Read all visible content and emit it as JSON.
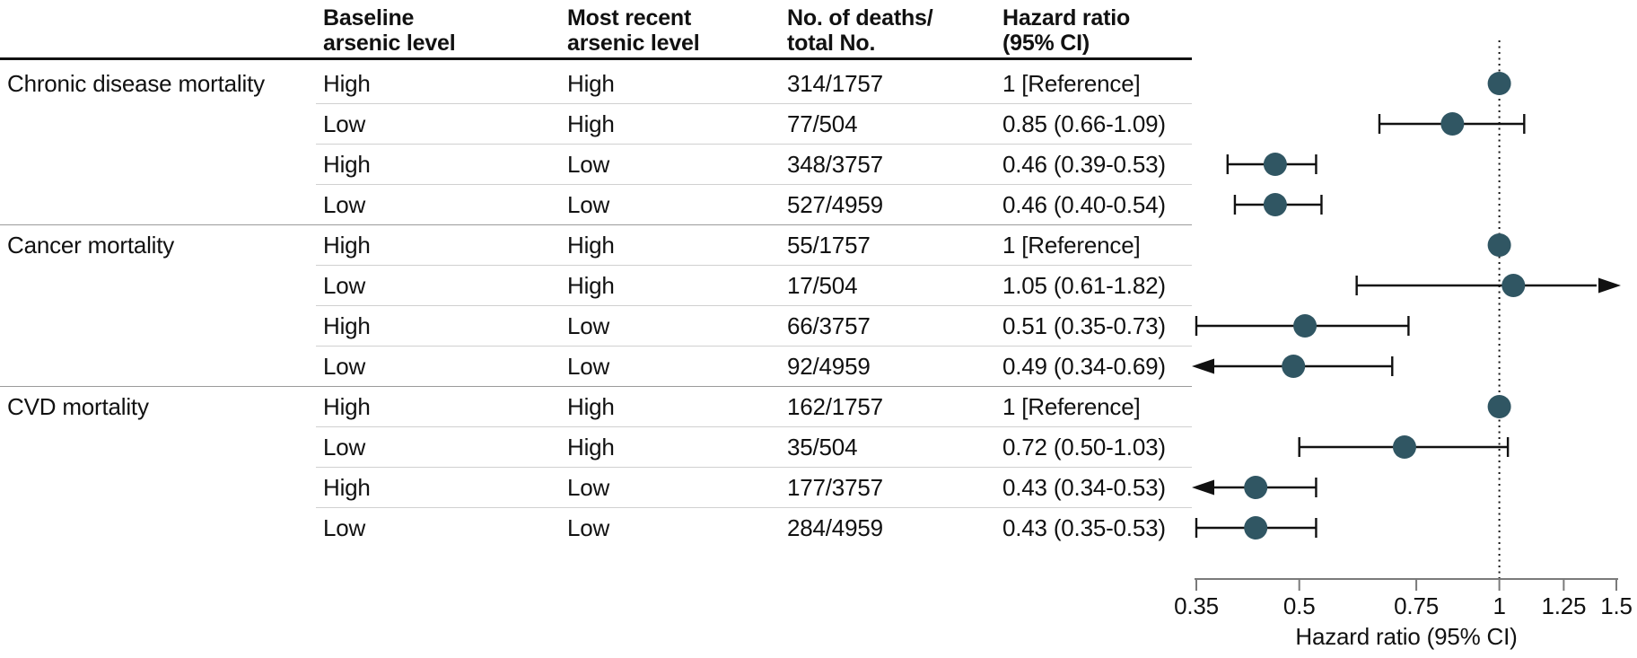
{
  "table": {
    "headers": {
      "baseline": "Baseline\narsenic level",
      "recent": "Most recent\narsenic level",
      "deaths": "No. of deaths/\ntotal No.",
      "hazard": "Hazard ratio\n(95% CI)"
    }
  },
  "chart_data": {
    "type": "scatter",
    "subtype": "forest-plot",
    "xlabel": "Hazard ratio (95% CI)",
    "xscale": "log",
    "xlim": [
      0.35,
      1.5
    ],
    "xticks": [
      0.35,
      0.5,
      0.75,
      1,
      1.25,
      1.5
    ],
    "xtick_labels": [
      "0.35",
      "0.5",
      "0.75",
      "1",
      "1.25",
      "1.5"
    ],
    "reference_line_x": 1,
    "groups": [
      {
        "label": "Chronic disease mortality",
        "rows": [
          {
            "baseline": "High",
            "recent": "High",
            "deaths": "314/1757",
            "hr_text": "1 [Reference]",
            "hr": 1,
            "reference": true
          },
          {
            "baseline": "Low",
            "recent": "High",
            "deaths": "77/504",
            "hr_text": "0.85 (0.66-1.09)",
            "hr": 0.85,
            "lo": 0.66,
            "hi": 1.09
          },
          {
            "baseline": "High",
            "recent": "Low",
            "deaths": "348/3757",
            "hr_text": "0.46 (0.39-0.53)",
            "hr": 0.46,
            "lo": 0.39,
            "hi": 0.53
          },
          {
            "baseline": "Low",
            "recent": "Low",
            "deaths": "527/4959",
            "hr_text": "0.46 (0.40-0.54)",
            "hr": 0.46,
            "lo": 0.4,
            "hi": 0.54
          }
        ]
      },
      {
        "label": "Cancer mortality",
        "rows": [
          {
            "baseline": "High",
            "recent": "High",
            "deaths": "55/1757",
            "hr_text": "1 [Reference]",
            "hr": 1,
            "reference": true
          },
          {
            "baseline": "Low",
            "recent": "High",
            "deaths": "17/504",
            "hr_text": "1.05 (0.61-1.82)",
            "hr": 1.05,
            "lo": 0.61,
            "hi": 1.82,
            "clip_hi": true
          },
          {
            "baseline": "High",
            "recent": "Low",
            "deaths": "66/3757",
            "hr_text": "0.51 (0.35-0.73)",
            "hr": 0.51,
            "lo": 0.35,
            "hi": 0.73
          },
          {
            "baseline": "Low",
            "recent": "Low",
            "deaths": "92/4959",
            "hr_text": "0.49 (0.34-0.69)",
            "hr": 0.49,
            "lo": 0.34,
            "hi": 0.69,
            "clip_lo": true
          }
        ]
      },
      {
        "label": "CVD mortality",
        "rows": [
          {
            "baseline": "High",
            "recent": "High",
            "deaths": "162/1757",
            "hr_text": "1 [Reference]",
            "hr": 1,
            "reference": true
          },
          {
            "baseline": "Low",
            "recent": "High",
            "deaths": "35/504",
            "hr_text": "0.72 (0.50-1.03)",
            "hr": 0.72,
            "lo": 0.5,
            "hi": 1.03
          },
          {
            "baseline": "High",
            "recent": "Low",
            "deaths": "177/3757",
            "hr_text": "0.43 (0.34-0.53)",
            "hr": 0.43,
            "lo": 0.34,
            "hi": 0.53,
            "clip_lo": true
          },
          {
            "baseline": "Low",
            "recent": "Low",
            "deaths": "284/4959",
            "hr_text": "0.43 (0.35-0.53)",
            "hr": 0.43,
            "lo": 0.35,
            "hi": 0.53
          }
        ]
      }
    ]
  },
  "colors": {
    "marker": "#305663",
    "ci_line": "#111111",
    "axis": "#7a7a7a",
    "reference_line": "#111111",
    "row_divider": "#d0d0d0",
    "group_divider": "#9b9b9b",
    "header_rule": "#111111",
    "text": "#111111"
  }
}
